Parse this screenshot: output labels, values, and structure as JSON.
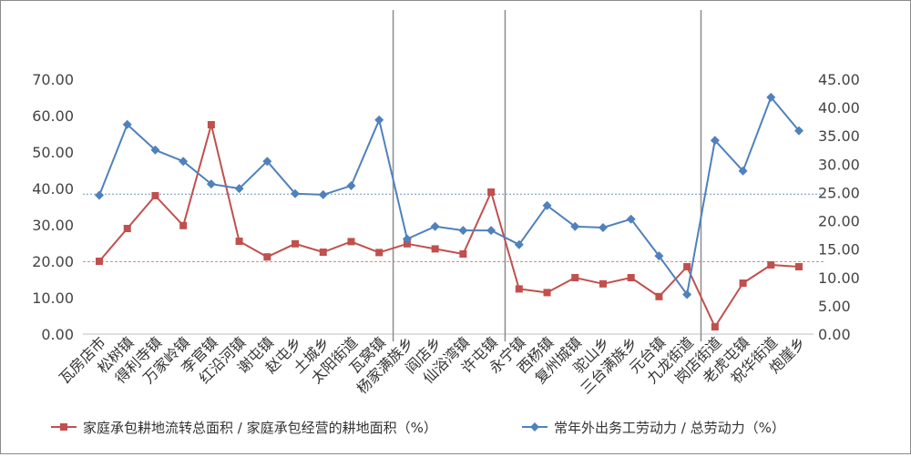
{
  "chart_data": {
    "type": "line",
    "categories": [
      "瓦房店市",
      "松树镇",
      "得利寺镇",
      "万家岭镇",
      "李官镇",
      "红沿河镇",
      "谢屯镇",
      "赵屯乡",
      "土城乡",
      "太阳街道",
      "瓦窝镇",
      "杨家满族乡",
      "阎店乡",
      "仙浴湾镇",
      "许屯镇",
      "永宁镇",
      "西杨镇",
      "复州城镇",
      "驼山乡",
      "三台满族乡",
      "元台镇",
      "九龙街道",
      "岗店街道",
      "老虎屯镇",
      "祝华街道",
      "炮崖乡"
    ],
    "series": [
      {
        "name": "家庭承包耕地流转总面积 / 家庭承包经营的耕地面积（%）",
        "axis": "left",
        "color": "#c0504d",
        "marker": "square",
        "values": [
          20.0,
          29.0,
          38.0,
          29.8,
          57.5,
          25.5,
          21.2,
          24.8,
          22.5,
          25.4,
          22.4,
          24.8,
          23.4,
          22.0,
          39.0,
          12.4,
          11.4,
          15.5,
          13.8,
          15.5,
          10.3,
          18.5,
          2.0,
          14.0,
          19.0,
          18.5
        ]
      },
      {
        "name": "常年外出务工劳动力 / 总劳动力（%）",
        "axis": "right",
        "color": "#4f81bd",
        "marker": "diamond",
        "values": [
          24.5,
          37.0,
          32.5,
          30.5,
          26.5,
          25.7,
          30.5,
          24.8,
          24.6,
          26.2,
          37.8,
          16.8,
          19.0,
          18.3,
          18.3,
          15.8,
          22.7,
          19.0,
          18.8,
          20.3,
          13.8,
          7.0,
          34.2,
          28.8,
          41.8,
          35.9
        ]
      }
    ],
    "y_left": {
      "min": 0,
      "max": 70,
      "ticks": [
        "0.00",
        "10.00",
        "20.00",
        "30.00",
        "40.00",
        "50.00",
        "60.00",
        "70.00"
      ]
    },
    "y_right": {
      "min": 0,
      "max": 45,
      "ticks": [
        "0.00",
        "5.00",
        "10.00",
        "15.00",
        "20.00",
        "25.00",
        "30.00",
        "35.00",
        "40.00",
        "45.00"
      ]
    },
    "reference_lines": [
      {
        "axis": "left",
        "value": 19.9,
        "color": "#e06666"
      },
      {
        "axis": "right",
        "value": 24.7,
        "color": "#4f81bd"
      }
    ],
    "separators_after_category": [
      "瓦窝镇",
      "许屯镇",
      "九龙街道"
    ],
    "legend_position": "bottom",
    "grid": false
  },
  "legend": [
    {
      "label": "家庭承包耕地流转总面积 / 家庭承包经营的耕地面积（%）",
      "color": "#c0504d",
      "marker": "square"
    },
    {
      "label": "常年外出务工劳动力 / 总劳动力（%）",
      "color": "#4f81bd",
      "marker": "diamond"
    }
  ]
}
